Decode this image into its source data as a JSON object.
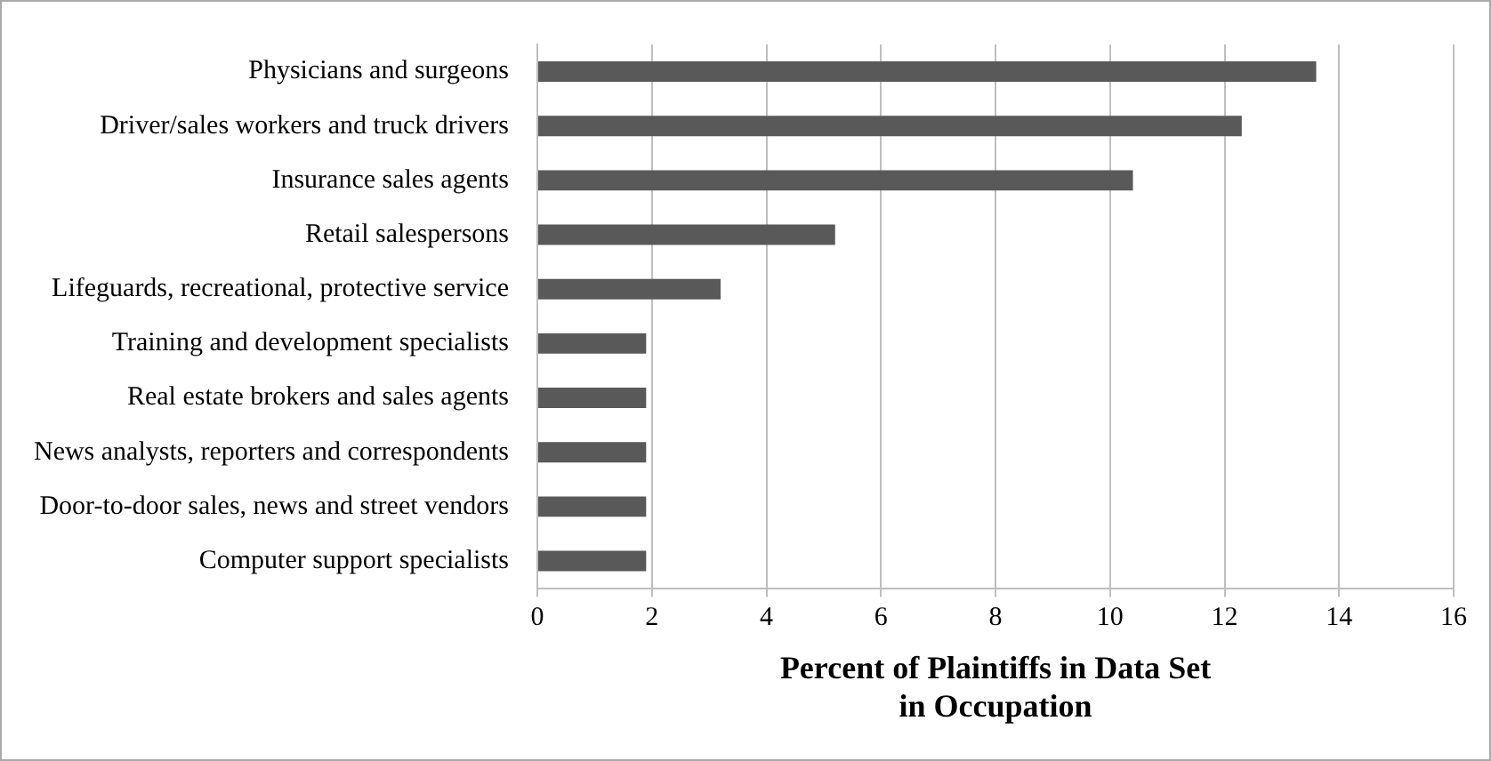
{
  "chart_data": {
    "type": "bar",
    "orientation": "horizontal",
    "categories": [
      "Physicians and surgeons",
      "Driver/sales workers and truck drivers",
      "Insurance sales agents",
      "Retail salespersons",
      "Lifeguards, recreational, protective service",
      "Training and development specialists",
      "Real estate brokers and sales agents",
      "News analysts, reporters and correspondents",
      "Door-to-door sales, news and street vendors",
      "Computer support specialists"
    ],
    "values": [
      13.6,
      12.3,
      10.4,
      5.2,
      3.2,
      1.9,
      1.9,
      1.9,
      1.9,
      1.9
    ],
    "color": "#595959",
    "xlabel": "Percent of Plaintiffs in Data Set\nin Occupation",
    "xlim": [
      0,
      16
    ],
    "xticks": [
      0,
      2,
      4,
      6,
      8,
      10,
      12,
      14,
      16
    ],
    "grid": "x",
    "legend": false
  }
}
